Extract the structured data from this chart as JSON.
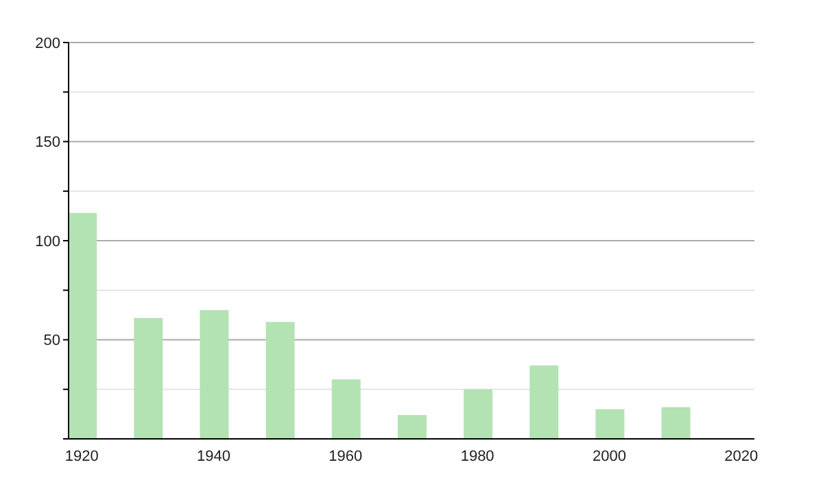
{
  "chart_data": {
    "type": "bar",
    "x": [
      1920,
      1930,
      1940,
      1950,
      1960,
      1970,
      1980,
      1990,
      2000,
      2010
    ],
    "values": [
      114,
      61,
      65,
      59,
      30,
      12,
      25,
      37,
      15,
      16
    ],
    "color": "#b3e2b3",
    "xlim": [
      1918,
      2022
    ],
    "xticks": [
      1920,
      1940,
      1960,
      1980,
      2000,
      2020
    ],
    "ylim": [
      0,
      200
    ],
    "yticks": [
      {
        "value": 0,
        "label": null
      },
      {
        "value": 25,
        "label": null
      },
      50,
      {
        "value": 75,
        "label": null
      },
      100,
      {
        "value": 125,
        "label": null
      },
      150,
      {
        "value": 175,
        "label": null
      },
      200
    ],
    "grid": "y"
  }
}
